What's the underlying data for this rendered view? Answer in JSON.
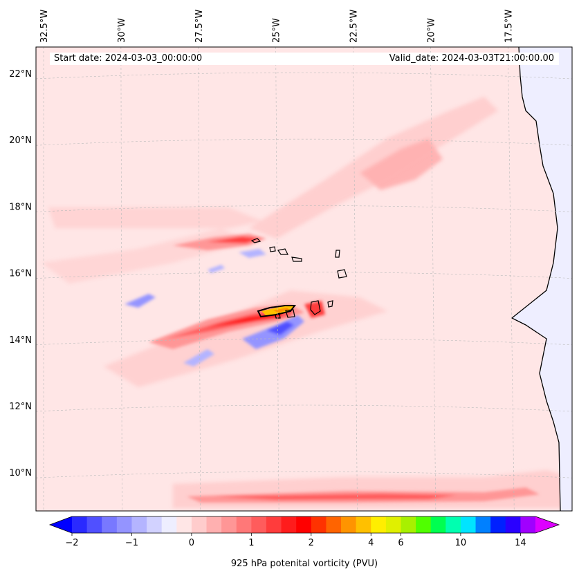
{
  "map": {
    "start_label": "Start date: 2024-03-03_00:00:00",
    "valid_label": "Valid_date: 2024-03-03T21:00:00.00",
    "lon_ticks": [
      "32.5°W",
      "30°W",
      "27.5°W",
      "25°W",
      "22.5°W",
      "20°W",
      "17.5°W"
    ],
    "lat_ticks": [
      "22°N",
      "20°N",
      "18°N",
      "16°N",
      "14°N",
      "12°N",
      "10°N"
    ],
    "lon_values": [
      -32.5,
      -30,
      -27.5,
      -25,
      -22.5,
      -20,
      -17.5
    ],
    "lat_values": [
      22,
      20,
      18,
      16,
      14,
      12,
      10
    ],
    "field": "925 hPa potenital vorticity (PVU)"
  },
  "colorbar": {
    "label": "925 hPa potenital vorticity (PVU)",
    "tick_labels": [
      "−2",
      "−1",
      "0",
      "1",
      "2",
      "4",
      "6",
      "10",
      "14"
    ],
    "levels": [
      -2,
      -1.75,
      -1.5,
      -1.25,
      -1,
      -0.75,
      -0.5,
      -0.25,
      0,
      0.25,
      0.5,
      0.75,
      1,
      1.25,
      1.5,
      1.75,
      2,
      2.5,
      3,
      3.5,
      4,
      5,
      6,
      7,
      8,
      9,
      10,
      11,
      12,
      13,
      14,
      15
    ],
    "colors": [
      "#0000ff",
      "#2a2aff",
      "#5050ff",
      "#7878ff",
      "#9494ff",
      "#b4b4ff",
      "#d2d2ff",
      "#eeeeff",
      "#ffe6e6",
      "#ffcccc",
      "#ffb0b0",
      "#ff9696",
      "#ff7878",
      "#ff5c5c",
      "#ff3c3c",
      "#ff1c1c",
      "#ff0000",
      "#ff3200",
      "#ff6400",
      "#ff9400",
      "#ffc000",
      "#ffee00",
      "#e0f000",
      "#a8f000",
      "#50ff00",
      "#00ff50",
      "#00ffb0",
      "#00e4ff",
      "#0080ff",
      "#0020ff",
      "#2a00ff",
      "#a000ff",
      "#dd00ff"
    ]
  },
  "theme": {
    "ocean_base": "#ffe6e6",
    "land_fill": "#eeeeff",
    "coast": "#000000",
    "grid": "#bbbbbb"
  }
}
